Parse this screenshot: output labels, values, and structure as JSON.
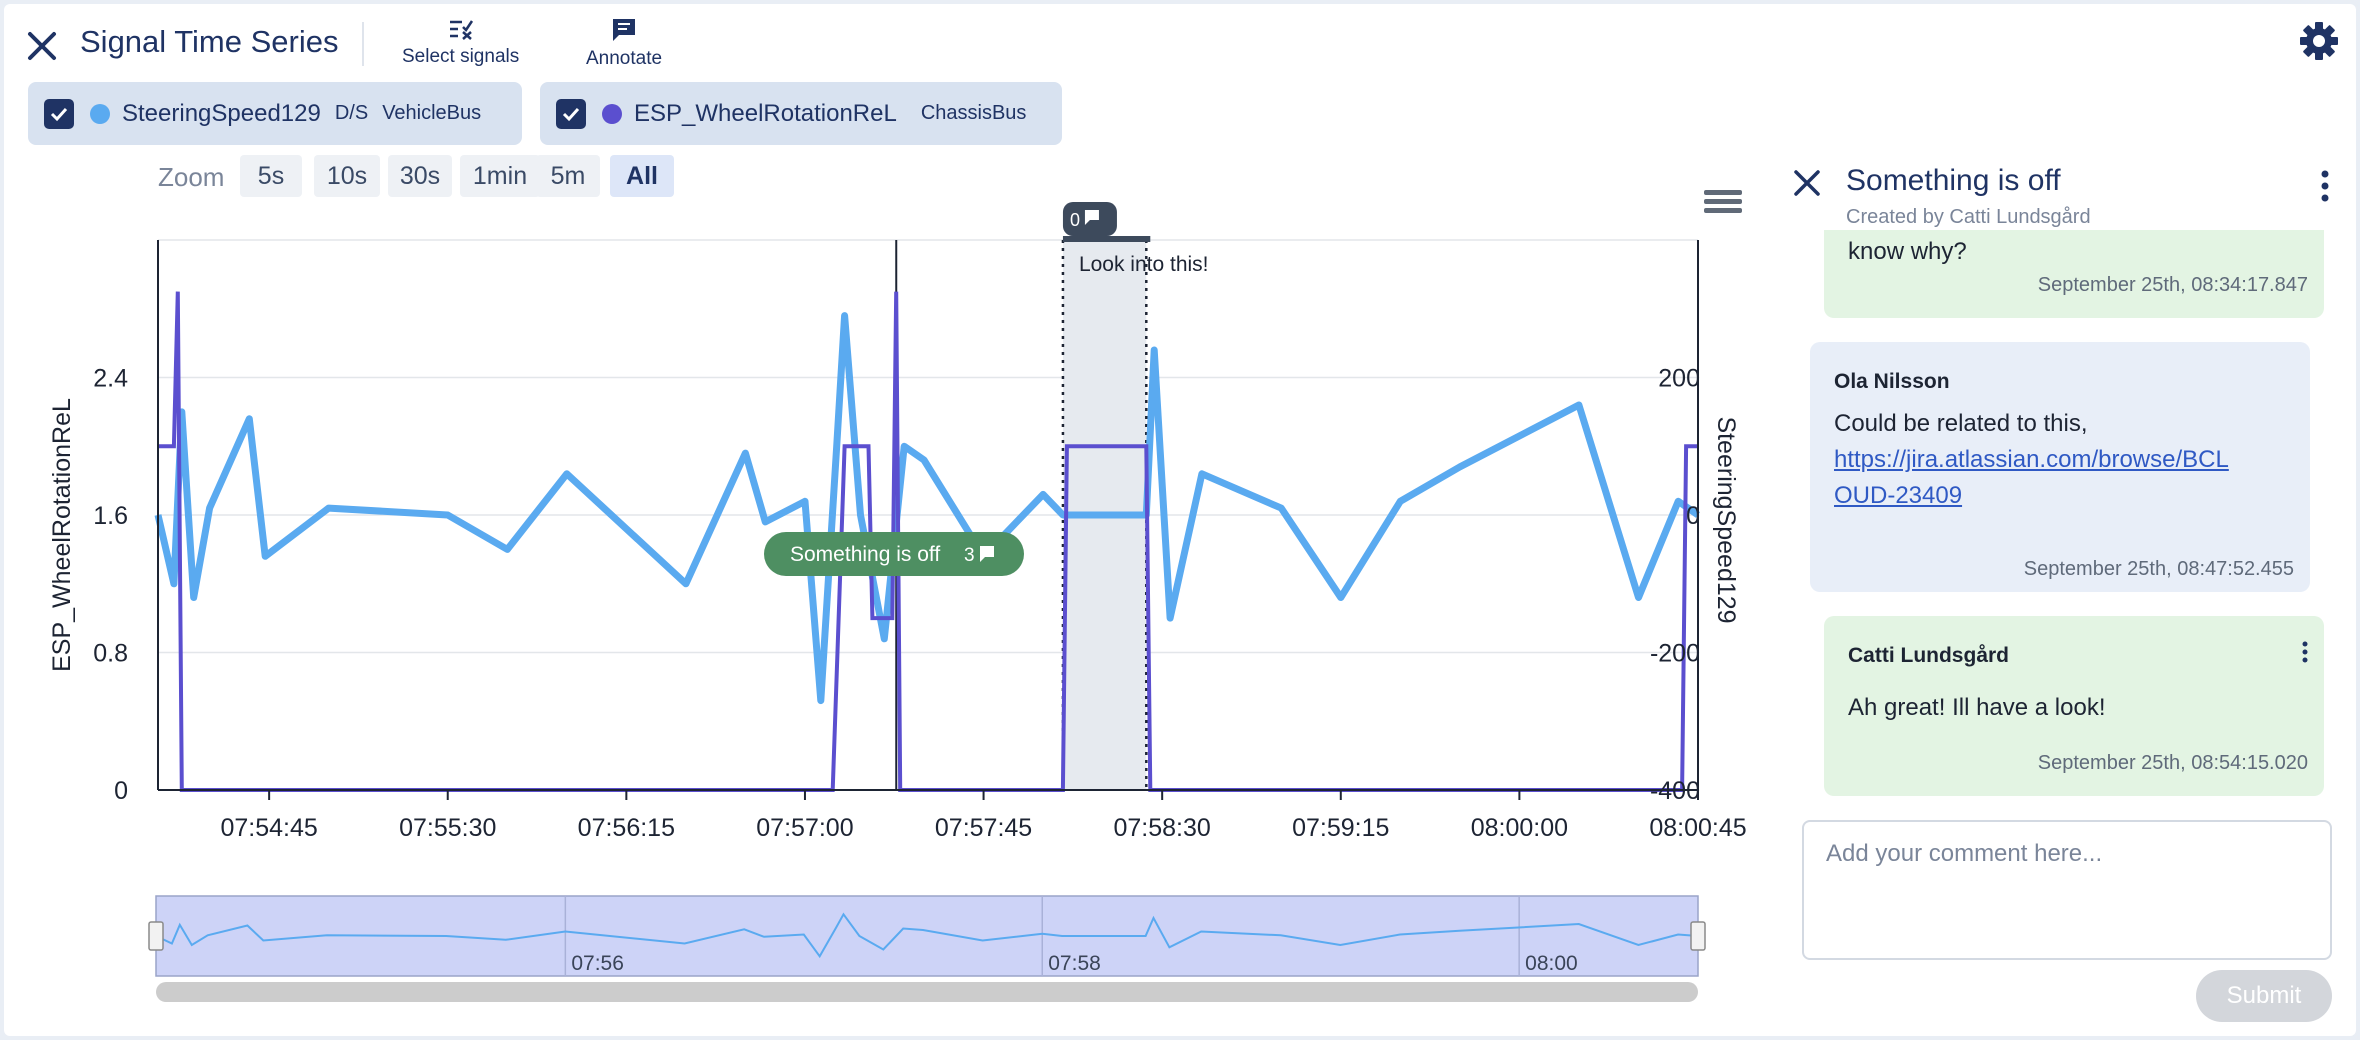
{
  "header": {
    "title": "Signal Time Series",
    "select_signals_label": "Select signals",
    "annotate_label": "Annotate"
  },
  "signals": [
    {
      "name": "SteeringSpeed129",
      "qualifier": "D/S",
      "bus": "VehicleBus",
      "color": "#5aaaf0",
      "checked": true
    },
    {
      "name": "ESP_WheelRotationReL",
      "qualifier": "",
      "bus": "ChassisBus",
      "color": "#5b4fcf",
      "checked": true
    }
  ],
  "zoom": {
    "label": "Zoom",
    "options": [
      "5s",
      "10s",
      "30s",
      "1min",
      "5m",
      "All"
    ],
    "active": "All"
  },
  "chart_data": {
    "type": "line",
    "left_axis": {
      "label": "ESP_WheelRotationReL",
      "ticks": [
        "0",
        "0.8",
        "1.6",
        "2.4"
      ],
      "range": [
        0,
        3.2
      ],
      "color": "#5b4fcf"
    },
    "right_axis": {
      "label": "SteeringSpeed129",
      "ticks": [
        "-400",
        "-200",
        "0",
        "200"
      ],
      "range": [
        -400,
        400
      ],
      "color": "#5aaaf0"
    },
    "x_ticks": [
      "07:54:45",
      "07:55:30",
      "07:56:15",
      "07:57:00",
      "07:57:45",
      "07:58:30",
      "07:59:15",
      "08:00:00",
      "08:00:45"
    ],
    "navigator_ticks": [
      "07:56",
      "07:58",
      "08:00"
    ],
    "series": [
      {
        "name": "ESP_WheelRotationReL",
        "color": "#5b4fcf",
        "points": [
          [
            "07:54:17",
            2.0
          ],
          [
            "07:54:21",
            2.0
          ],
          [
            "07:54:22",
            2.9
          ],
          [
            "07:54:23",
            0.0
          ],
          [
            "07:57:07",
            0.0
          ],
          [
            "07:57:10",
            2.0
          ],
          [
            "07:57:16",
            2.0
          ],
          [
            "07:57:17",
            1.0
          ],
          [
            "07:57:22",
            1.0
          ],
          [
            "07:57:23",
            2.9
          ],
          [
            "07:57:24",
            0.0
          ],
          [
            "07:58:05",
            0.0
          ],
          [
            "07:58:06",
            2.0
          ],
          [
            "07:58:26",
            2.0
          ],
          [
            "07:58:27",
            0.0
          ],
          [
            "08:00:41",
            0.0
          ],
          [
            "08:00:42",
            2.0
          ],
          [
            "08:00:45",
            2.0
          ]
        ]
      },
      {
        "name": "SteeringSpeed129",
        "color": "#5aaaf0",
        "points": [
          [
            "07:54:17",
            0
          ],
          [
            "07:54:21",
            -100
          ],
          [
            "07:54:23",
            150
          ],
          [
            "07:54:26",
            -120
          ],
          [
            "07:54:30",
            10
          ],
          [
            "07:54:40",
            140
          ],
          [
            "07:54:44",
            -60
          ],
          [
            "07:55:00",
            10
          ],
          [
            "07:55:30",
            0
          ],
          [
            "07:55:45",
            -50
          ],
          [
            "07:56:00",
            60
          ],
          [
            "07:56:30",
            -100
          ],
          [
            "07:56:45",
            90
          ],
          [
            "07:56:50",
            -10
          ],
          [
            "07:57:00",
            20
          ],
          [
            "07:57:04",
            -270
          ],
          [
            "07:57:08",
            100
          ],
          [
            "07:57:10",
            290
          ],
          [
            "07:57:14",
            0
          ],
          [
            "07:57:20",
            -180
          ],
          [
            "07:57:25",
            100
          ],
          [
            "07:57:30",
            80
          ],
          [
            "07:57:45",
            -60
          ],
          [
            "07:58:00",
            30
          ],
          [
            "07:58:05",
            0
          ],
          [
            "07:58:26",
            0
          ],
          [
            "07:58:28",
            240
          ],
          [
            "07:58:32",
            -150
          ],
          [
            "07:58:40",
            60
          ],
          [
            "07:59:00",
            10
          ],
          [
            "07:59:15",
            -120
          ],
          [
            "07:59:30",
            20
          ],
          [
            "07:59:45",
            70
          ],
          [
            "08:00:15",
            160
          ],
          [
            "08:00:30",
            -120
          ],
          [
            "08:00:40",
            20
          ],
          [
            "08:00:45",
            0
          ]
        ]
      }
    ],
    "annotations": [
      {
        "label": "Something is off",
        "comment_count": "3"
      },
      {
        "label": "Look into this!",
        "comment_count": "0"
      }
    ]
  },
  "panel": {
    "title": "Something is off",
    "created_by": "Created by Catti Lundsgård",
    "comments": [
      {
        "author": "",
        "text": "know why?",
        "time": "September 25th, 08:34:17.847",
        "mine": true
      },
      {
        "author": "Ola Nilsson",
        "text": "Could be related to this,",
        "link": "https://jira.atlassian.com/browse/BCLOUD-23409",
        "link_line1": "https://jira.atlassian.com/browse/BCL",
        "link_line2": "OUD-23409",
        "time": "September 25th, 08:47:52.455",
        "mine": false
      },
      {
        "author": "Catti Lundsgård",
        "text": "Ah great! Ill have a look!",
        "time": "September 25th, 08:54:15.020",
        "mine": true
      }
    ],
    "comment_placeholder": "Add your comment here...",
    "submit_label": "Submit"
  }
}
